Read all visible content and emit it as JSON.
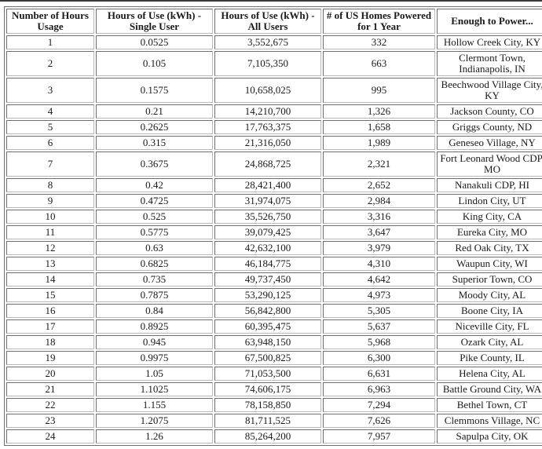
{
  "page": {
    "background_color": "#ffffff",
    "top_line_color": "#3b3b3b",
    "table_border_color": "#6e6e6e",
    "text_color": "#1a1a1a"
  },
  "chart_data": {
    "type": "table",
    "title": "",
    "columns": [
      "Number of Hours Usage",
      "Hours of Use (kWh) - Single User",
      "Hours of Use (kWh) - All Users",
      "# of US Homes Powered for 1 Year",
      "Enough to Power..."
    ],
    "rows": [
      [
        "1",
        "0.0525",
        "3,552,675",
        "332",
        "Hollow Creek City, KY"
      ],
      [
        "2",
        "0.105",
        "7,105,350",
        "663",
        "Clermont Town, Indianapolis, IN"
      ],
      [
        "3",
        "0.1575",
        "10,658,025",
        "995",
        "Beechwood Village City, KY"
      ],
      [
        "4",
        "0.21",
        "14,210,700",
        "1,326",
        "Jackson County, CO"
      ],
      [
        "5",
        "0.2625",
        "17,763,375",
        "1,658",
        "Griggs County, ND"
      ],
      [
        "6",
        "0.315",
        "21,316,050",
        "1,989",
        "Geneseo Village, NY"
      ],
      [
        "7",
        "0.3675",
        "24,868,725",
        "2,321",
        "Fort Leonard Wood CDP, MO"
      ],
      [
        "8",
        "0.42",
        "28,421,400",
        "2,652",
        "Nanakuli CDP, HI"
      ],
      [
        "9",
        "0.4725",
        "31,974,075",
        "2,984",
        "Lindon City, UT"
      ],
      [
        "10",
        "0.525",
        "35,526,750",
        "3,316",
        "King City, CA"
      ],
      [
        "11",
        "0.5775",
        "39,079,425",
        "3,647",
        "Eureka City, MO"
      ],
      [
        "12",
        "0.63",
        "42,632,100",
        "3,979",
        "Red Oak City, TX"
      ],
      [
        "13",
        "0.6825",
        "46,184,775",
        "4,310",
        "Waupun City, WI"
      ],
      [
        "14",
        "0.735",
        "49,737,450",
        "4,642",
        "Superior Town, CO"
      ],
      [
        "15",
        "0.7875",
        "53,290,125",
        "4,973",
        "Moody City, AL"
      ],
      [
        "16",
        "0.84",
        "56,842,800",
        "5,305",
        "Boone City, IA"
      ],
      [
        "17",
        "0.8925",
        "60,395,475",
        "5,637",
        "Niceville City, FL"
      ],
      [
        "18",
        "0.945",
        "63,948,150",
        "5,968",
        "Ozark City, AL"
      ],
      [
        "19",
        "0.9975",
        "67,500,825",
        "6,300",
        "Pike County, IL"
      ],
      [
        "20",
        "1.05",
        "71,053,500",
        "6,631",
        "Helena City, AL"
      ],
      [
        "21",
        "1.1025",
        "74,606,175",
        "6,963",
        "Battle Ground City, WA"
      ],
      [
        "22",
        "1.155",
        "78,158,850",
        "7,294",
        "Bethel Town, CT"
      ],
      [
        "23",
        "1.2075",
        "81,711,525",
        "7,626",
        "Clemmons Village, NC"
      ],
      [
        "24",
        "1.26",
        "85,264,200",
        "7,957",
        "Sapulpa City, OK"
      ]
    ]
  }
}
